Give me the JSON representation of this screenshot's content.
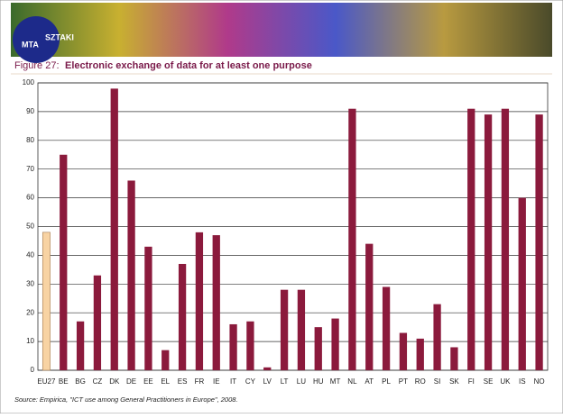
{
  "header": {
    "logo": "MTA",
    "logo_sub": "SZTAKI"
  },
  "chart_data": {
    "type": "bar",
    "figure_label": "Figure 27:",
    "title": "Electronic exchange of data for at least one purpose",
    "source": "Source: Empirica, \"ICT use among General Practitioners in Europe\", 2008.",
    "categories": [
      "EU27",
      "BE",
      "BG",
      "CZ",
      "DK",
      "DE",
      "EE",
      "EL",
      "ES",
      "FR",
      "IE",
      "IT",
      "CY",
      "LV",
      "LT",
      "LU",
      "HU",
      "MT",
      "NL",
      "AT",
      "PL",
      "PT",
      "RO",
      "SI",
      "SK",
      "FI",
      "SE",
      "UK",
      "IS",
      "NO"
    ],
    "values": [
      48,
      75,
      17,
      33,
      98,
      66,
      43,
      7,
      37,
      48,
      47,
      16,
      17,
      1,
      28,
      28,
      15,
      18,
      91,
      44,
      29,
      13,
      11,
      23,
      8,
      91,
      89,
      91,
      60,
      89
    ],
    "colors": [
      "#f8d3a3",
      "#8b1a3c",
      "#8b1a3c",
      "#8b1a3c",
      "#8b1a3c",
      "#8b1a3c",
      "#8b1a3c",
      "#8b1a3c",
      "#8b1a3c",
      "#8b1a3c",
      "#8b1a3c",
      "#8b1a3c",
      "#8b1a3c",
      "#8b1a3c",
      "#8b1a3c",
      "#8b1a3c",
      "#8b1a3c",
      "#8b1a3c",
      "#8b1a3c",
      "#8b1a3c",
      "#8b1a3c",
      "#8b1a3c",
      "#8b1a3c",
      "#8b1a3c",
      "#8b1a3c",
      "#8b1a3c",
      "#8b1a3c",
      "#8b1a3c",
      "#8b1a3c",
      "#8b1a3c"
    ],
    "ylim": [
      0,
      100
    ],
    "yticks": [
      0,
      10,
      20,
      30,
      40,
      50,
      60,
      70,
      80,
      90,
      100
    ],
    "grid": true
  }
}
